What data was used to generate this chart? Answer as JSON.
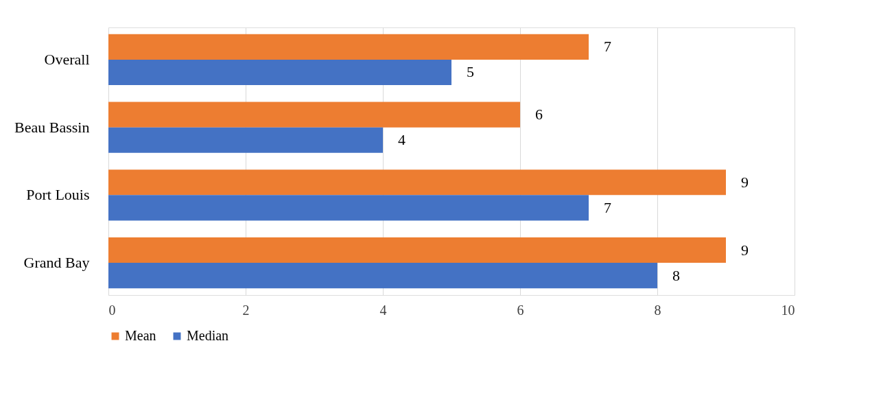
{
  "chart_data": {
    "type": "bar",
    "orientation": "horizontal",
    "categories": [
      "Overall",
      "Beau Bassin",
      "Port Louis",
      "Grand Bay"
    ],
    "series": [
      {
        "name": "Mean",
        "color": "#ed7d31",
        "values": [
          7,
          6,
          9,
          9
        ]
      },
      {
        "name": "Median",
        "color": "#4472c4",
        "values": [
          5,
          4,
          7,
          8
        ]
      }
    ],
    "xlim": [
      0,
      10
    ],
    "xticks": [
      0,
      2,
      4,
      6,
      8,
      10
    ],
    "grid": "x",
    "legend": "bottom",
    "data_labels": true
  }
}
